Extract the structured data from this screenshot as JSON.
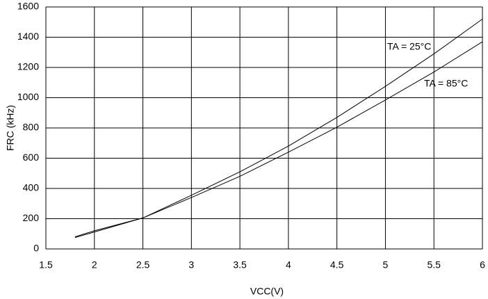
{
  "chart_data": {
    "type": "line",
    "xlabel": "VCC(V)",
    "ylabel": "FRC (kHz)",
    "x": [
      1.8,
      2,
      2.5,
      3,
      3.5,
      4,
      4.5,
      5,
      5.5,
      6
    ],
    "series": [
      {
        "name": "TA = 25°C",
        "color": "#000000",
        "values": [
          75,
          112,
          205,
          355,
          510,
          680,
          870,
          1075,
          1290,
          1520
        ]
      },
      {
        "name": "TA = 85°C",
        "color": "#000000",
        "values": [
          80,
          120,
          205,
          340,
          480,
          640,
          805,
          985,
          1170,
          1370
        ]
      }
    ],
    "xlim": [
      1.5,
      6
    ],
    "xticks": [
      1.5,
      2,
      2.5,
      3,
      3.5,
      4,
      4.5,
      5,
      5.5,
      6
    ],
    "ylim": [
      0,
      1600
    ],
    "yticks": [
      0,
      200,
      400,
      600,
      800,
      1000,
      1200,
      1400,
      1600
    ],
    "grid": true
  }
}
